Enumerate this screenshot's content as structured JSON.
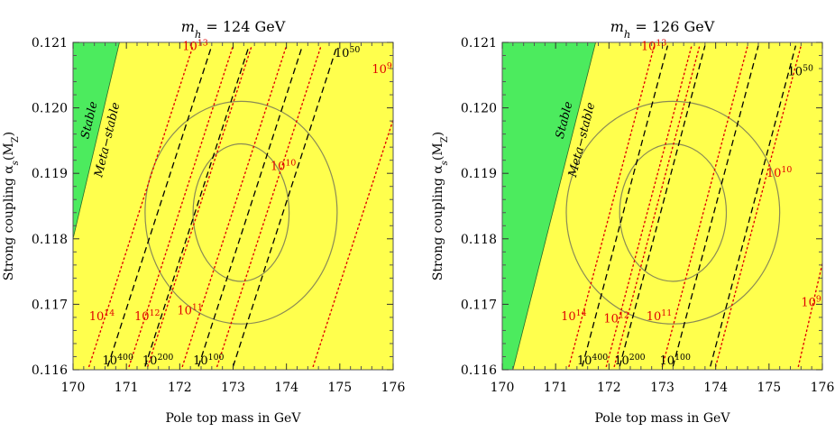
{
  "colors": {
    "meta_stable": "#ffff4d",
    "stable": "#4ceb5e",
    "black_line": "#000000",
    "red_line": "#e00000",
    "ellipse": "#8a8a55"
  },
  "chart_data": [
    {
      "type": "contour",
      "title": "m_h = 124 GeV",
      "title_main": "m",
      "title_sub": "h",
      "title_rest": " = 124 GeV",
      "xlabel": "Pole top mass in GeV",
      "ylabel": "Strong coupling α_s(M_Z)",
      "ylabel_main": "Strong coupling α",
      "ylabel_sub": "s",
      "ylabel_rest": "(M",
      "ylabel_sub2": "Z",
      "ylabel_end": ")",
      "xlim": [
        170,
        176
      ],
      "ylim": [
        0.116,
        0.121
      ],
      "xticks": [
        "170",
        "171",
        "172",
        "173",
        "174",
        "175",
        "176"
      ],
      "yticks": [
        "0.116",
        "0.117",
        "0.118",
        "0.119",
        "0.120",
        "0.121"
      ],
      "regions": [
        {
          "label": "Stable",
          "boundary": [
            [
              170.0,
              0.118
            ],
            [
              170.87,
              0.121
            ]
          ]
        },
        {
          "label": "Meta−stable"
        }
      ],
      "black_lines": [
        {
          "exp": "400",
          "base": "10",
          "x0": 170.65,
          "x1": 172.6,
          "label_x": 170.55,
          "label_y": 0.11608
        },
        {
          "exp": "200",
          "base": "10",
          "x0": 171.35,
          "x1": 173.3,
          "label_x": 171.3,
          "label_y": 0.11608
        },
        {
          "exp": "100",
          "base": "10",
          "x0": 172.35,
          "x1": 174.3,
          "label_x": 172.25,
          "label_y": 0.11608
        },
        {
          "exp": "50",
          "base": "10",
          "x0": 173.0,
          "x1": 174.95,
          "label_x": 174.9,
          "label_y": 0.12078
        }
      ],
      "red_lines": [
        {
          "exp": "14",
          "base": "10",
          "x0": 170.3,
          "x1": 172.25,
          "label_x": 170.3,
          "label_y": 0.11676
        },
        {
          "exp": "13",
          "base": "10",
          "x0": 171.05,
          "x1": 173.0,
          "label_x": 172.05,
          "label_y": 0.12088
        },
        {
          "exp": "12",
          "base": "10",
          "x0": 171.4,
          "x1": 173.35,
          "label_x": 171.15,
          "label_y": 0.11676
        },
        {
          "exp": "11",
          "base": "10",
          "x0": 172.05,
          "x1": 174.0,
          "label_x": 171.95,
          "label_y": 0.11685
        },
        {
          "exp": "10",
          "base": "10",
          "x0": 172.7,
          "x1": 174.65,
          "label_x": 173.7,
          "label_y": 0.11905
        },
        {
          "exp": "9",
          "base": "10",
          "x0": 174.5,
          "x1": 176.45,
          "label_x": 175.6,
          "label_y": 0.12053
        }
      ],
      "ellipses": [
        {
          "cx": 173.15,
          "cy": 0.1184,
          "rx": 0.9,
          "ry": 0.00105
        },
        {
          "cx": 173.15,
          "cy": 0.1184,
          "rx": 1.8,
          "ry": 0.0017
        }
      ]
    },
    {
      "type": "contour",
      "title": "m_h = 126 GeV",
      "title_main": "m",
      "title_sub": "h",
      "title_rest": " = 126 GeV",
      "xlabel": "Pole top mass in GeV",
      "ylabel": "Strong coupling α_s(M_Z)",
      "ylabel_main": "Strong coupling α",
      "ylabel_sub": "s",
      "ylabel_rest": "(M",
      "ylabel_sub2": "Z",
      "ylabel_end": ")",
      "xlim": [
        170,
        176
      ],
      "ylim": [
        0.116,
        0.121
      ],
      "xticks": [
        "170",
        "171",
        "172",
        "173",
        "174",
        "175",
        "176"
      ],
      "yticks": [
        "0.116",
        "0.117",
        "0.118",
        "0.119",
        "0.120",
        "0.121"
      ],
      "regions": [
        {
          "label": "Stable",
          "boundary": [
            [
              170.2,
              0.116
            ],
            [
              171.75,
              0.121
            ]
          ]
        },
        {
          "label": "Meta−stable"
        }
      ],
      "black_lines": [
        {
          "exp": "400",
          "base": "10",
          "x0": 171.5,
          "x1": 173.1,
          "label_x": 171.4,
          "label_y": 0.11608
        },
        {
          "exp": "200",
          "base": "10",
          "x0": 172.2,
          "x1": 173.8,
          "label_x": 172.1,
          "label_y": 0.11608
        },
        {
          "exp": "100",
          "base": "10",
          "x0": 173.2,
          "x1": 174.8,
          "label_x": 172.95,
          "label_y": 0.11608
        },
        {
          "exp": "50",
          "base": "10",
          "x0": 173.9,
          "x1": 175.5,
          "label_x": 175.35,
          "label_y": 0.1205
        }
      ],
      "red_lines": [
        {
          "exp": "14",
          "base": "10",
          "x0": 171.25,
          "x1": 172.85,
          "label_x": 171.1,
          "label_y": 0.11676
        },
        {
          "exp": "13",
          "base": "10",
          "x0": 171.95,
          "x1": 173.55,
          "label_x": 172.6,
          "label_y": 0.12088
        },
        {
          "exp": "12",
          "base": "10",
          "x0": 172.1,
          "x1": 173.7,
          "label_x": 171.9,
          "label_y": 0.11672
        },
        {
          "exp": "11",
          "base": "10",
          "x0": 173.0,
          "x1": 174.6,
          "label_x": 172.7,
          "label_y": 0.11676
        },
        {
          "exp": "10",
          "base": "10",
          "x0": 174.0,
          "x1": 175.6,
          "label_x": 174.95,
          "label_y": 0.11895
        },
        {
          "exp": "9",
          "base": "10",
          "x0": 175.55,
          "x1": 176.95,
          "label_x": 175.6,
          "label_y": 0.11697
        }
      ],
      "ellipses": [
        {
          "cx": 173.2,
          "cy": 0.1184,
          "rx": 1.0,
          "ry": 0.00105
        },
        {
          "cx": 173.2,
          "cy": 0.1184,
          "rx": 2.0,
          "ry": 0.0017
        }
      ]
    }
  ]
}
